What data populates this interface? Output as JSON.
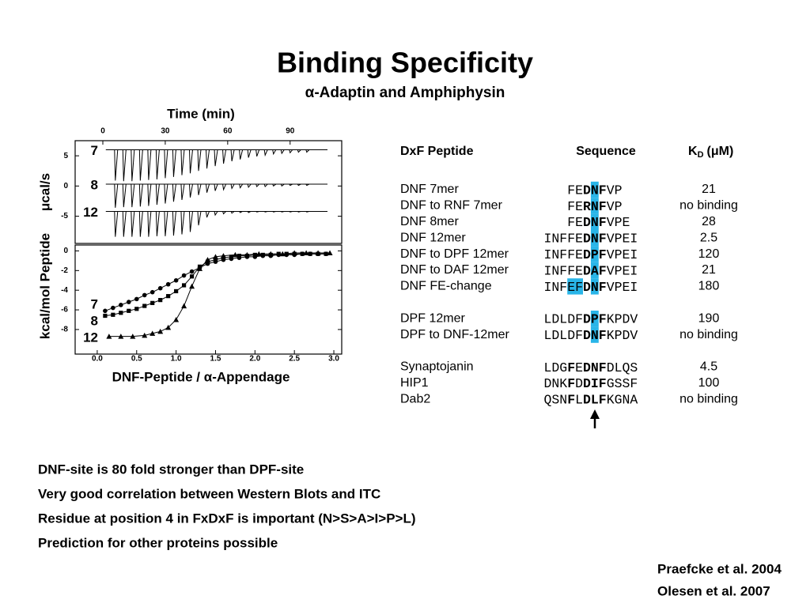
{
  "title": "Binding Specificity",
  "subtitle": "α-Adaptin and Amphiphysin",
  "chart_data": [
    {
      "type": "trace",
      "x_label": "Time (min)",
      "y_label": "μcal/s",
      "xlim": [
        -13.3,
        114.8
      ],
      "ylim": [
        -9.5,
        7.5
      ],
      "xticks": [
        0,
        30,
        60,
        90
      ],
      "yticks": [
        5,
        0,
        -5
      ],
      "x": [
        6,
        10,
        14,
        18,
        22,
        26,
        30,
        34,
        38,
        42,
        46,
        50,
        54,
        58,
        62,
        66,
        70,
        74,
        78,
        82,
        86,
        90,
        94,
        98
      ],
      "series": [
        {
          "name": "7",
          "color": "#000000",
          "baseline": 6.0,
          "values": [
            0.9,
            0.8,
            0.8,
            0.9,
            1.0,
            1.1,
            1.3,
            1.5,
            1.8,
            2.1,
            2.5,
            2.9,
            3.3,
            3.7,
            4.1,
            4.4,
            4.7,
            4.9,
            5.1,
            5.3,
            5.4,
            5.5,
            5.6,
            5.6
          ]
        },
        {
          "name": "8",
          "color": "#000000",
          "baseline": 0.3,
          "values": [
            -3.6,
            -3.5,
            -3.5,
            -3.4,
            -3.3,
            -3.1,
            -2.9,
            -2.6,
            -2.3,
            -1.9,
            -1.5,
            -1.1,
            -0.8,
            -0.6,
            -0.4,
            -0.3,
            -0.2,
            -0.1,
            -0.1,
            0.0,
            0.0,
            0.1,
            0.1,
            0.1
          ]
        },
        {
          "name": "12",
          "color": "#000000",
          "baseline": -4.2,
          "values": [
            -8.4,
            -8.4,
            -8.4,
            -8.4,
            -8.4,
            -8.3,
            -8.3,
            -8.2,
            -8.0,
            -7.6,
            -6.5,
            -5.2,
            -4.8,
            -4.6,
            -4.5,
            -4.4,
            -4.4,
            -4.3,
            -4.3,
            -4.3,
            -4.3,
            -4.3,
            -4.3,
            -4.3
          ]
        }
      ]
    },
    {
      "type": "scatter",
      "x_label": "DNF-Peptide / α-Appendage",
      "y_label": "kcal/mol Peptide",
      "xlim": [
        -0.28,
        3.1
      ],
      "ylim": [
        -10.5,
        0.6
      ],
      "xticks": [
        {
          "value": 0,
          "label": "0.0"
        },
        0.5,
        {
          "value": 1,
          "label": "1.0"
        },
        1.5,
        {
          "value": 2,
          "label": "2.0"
        },
        2.5,
        {
          "value": 3,
          "label": "3.0"
        }
      ],
      "yticks": [
        0,
        -2,
        -4,
        -6,
        -8
      ],
      "series": [
        {
          "name": "7",
          "color": "#000000",
          "marker": "circle",
          "fit_line": true,
          "x": [
            0.1,
            0.2,
            0.3,
            0.4,
            0.5,
            0.6,
            0.7,
            0.8,
            0.9,
            1.0,
            1.1,
            1.2,
            1.3,
            1.4,
            1.5,
            1.6,
            1.7,
            1.8,
            1.9,
            2.0,
            2.1,
            2.2,
            2.3,
            2.4,
            2.5,
            2.6,
            2.7,
            2.8,
            2.9
          ],
          "values": [
            -6.1,
            -5.8,
            -5.5,
            -5.2,
            -4.9,
            -4.5,
            -4.2,
            -3.8,
            -3.4,
            -3.0,
            -2.5,
            -2.1,
            -1.7,
            -1.3,
            -1.1,
            -0.9,
            -0.8,
            -0.7,
            -0.6,
            -0.6,
            -0.5,
            -0.5,
            -0.4,
            -0.4,
            -0.4,
            -0.3,
            -0.3,
            -0.3,
            -0.3
          ]
        },
        {
          "name": "8",
          "color": "#000000",
          "marker": "square",
          "fit_line": true,
          "x": [
            0.1,
            0.2,
            0.3,
            0.4,
            0.5,
            0.6,
            0.7,
            0.8,
            0.9,
            1.0,
            1.1,
            1.2,
            1.3,
            1.4,
            1.5,
            1.6,
            1.7,
            1.8,
            1.9,
            2.0,
            2.1,
            2.2,
            2.3,
            2.4,
            2.5,
            2.6,
            2.7,
            2.8,
            2.9
          ],
          "values": [
            -6.6,
            -6.5,
            -6.3,
            -6.1,
            -5.9,
            -5.6,
            -5.3,
            -5.0,
            -4.6,
            -4.1,
            -3.5,
            -2.6,
            -1.6,
            -1.1,
            -0.9,
            -0.7,
            -0.6,
            -0.5,
            -0.5,
            -0.4,
            -0.4,
            -0.4,
            -0.3,
            -0.3,
            -0.3,
            -0.3,
            -0.3,
            -0.3,
            -0.3
          ]
        },
        {
          "name": "12",
          "color": "#000000",
          "marker": "triangle",
          "fit_line": true,
          "x": [
            0.15,
            0.3,
            0.45,
            0.6,
            0.7,
            0.8,
            0.9,
            1.0,
            1.1,
            1.2,
            1.3,
            1.4,
            1.5,
            1.6,
            1.75,
            1.9,
            2.05,
            2.2,
            2.35,
            2.5,
            2.65,
            2.8,
            2.95
          ],
          "values": [
            -8.7,
            -8.7,
            -8.7,
            -8.6,
            -8.4,
            -8.2,
            -7.8,
            -7.0,
            -5.6,
            -3.6,
            -1.8,
            -0.9,
            -0.6,
            -0.5,
            -0.4,
            -0.4,
            -0.3,
            -0.3,
            -0.3,
            -0.2,
            -0.2,
            -0.2,
            -0.2
          ]
        }
      ]
    }
  ],
  "table": {
    "highlight_color": "#29b5e8",
    "header": {
      "peptide": "DxF Peptide",
      "sequence": "Sequence",
      "kd": {
        "main": "K",
        "sub": "D",
        "unit": "(μM)"
      }
    },
    "groups": [
      {
        "rows": [
          {
            "peptide": "DNF 7mer",
            "sequence": [
              {
                "text": "FE"
              },
              {
                "text": "D",
                "bold": true
              },
              {
                "text": "N",
                "bold": true,
                "highlight": true
              },
              {
                "text": "F",
                "bold": true
              },
              {
                "text": "VP"
              }
            ],
            "kd": 21
          },
          {
            "peptide": "DNF to RNF 7mer",
            "sequence": [
              {
                "text": "FE"
              },
              {
                "text": "R",
                "bold": true
              },
              {
                "text": "N",
                "bold": true,
                "highlight": true
              },
              {
                "text": "F",
                "bold": true
              },
              {
                "text": "VP"
              }
            ],
            "kd": "no binding"
          },
          {
            "peptide": "DNF 8mer",
            "sequence": [
              {
                "text": "FE"
              },
              {
                "text": "D",
                "bold": true
              },
              {
                "text": "N",
                "bold": true,
                "highlight": true
              },
              {
                "text": "F",
                "bold": true
              },
              {
                "text": "VPE"
              }
            ],
            "kd": 28
          },
          {
            "peptide": "DNF 12mer",
            "sequence": [
              {
                "text": "INFFE"
              },
              {
                "text": "D",
                "bold": true
              },
              {
                "text": "N",
                "bold": true,
                "highlight": true
              },
              {
                "text": "F",
                "bold": true
              },
              {
                "text": "VPEI"
              }
            ],
            "kd": 2.5
          },
          {
            "peptide": "DNF to DPF 12mer",
            "sequence": [
              {
                "text": "INFFE"
              },
              {
                "text": "D",
                "bold": true
              },
              {
                "text": "P",
                "bold": true,
                "highlight": true
              },
              {
                "text": "F",
                "bold": true
              },
              {
                "text": "VPEI"
              }
            ],
            "kd": 120
          },
          {
            "peptide": "DNF to DAF 12mer",
            "sequence": [
              {
                "text": "INFFE"
              },
              {
                "text": "D",
                "bold": true
              },
              {
                "text": "A",
                "bold": true,
                "highlight": true
              },
              {
                "text": "F",
                "bold": true
              },
              {
                "text": "VPEI"
              }
            ],
            "kd": 21
          },
          {
            "peptide": "DNF FE-change",
            "sequence": [
              {
                "text": "INF"
              },
              {
                "text": "EF",
                "highlight": true
              },
              {
                "text": "D",
                "bold": true
              },
              {
                "text": "N",
                "bold": true,
                "highlight": true
              },
              {
                "text": "F",
                "bold": true
              },
              {
                "text": "VPEI"
              }
            ],
            "kd": 180
          }
        ]
      },
      {
        "rows": [
          {
            "peptide": "DPF 12mer",
            "sequence": [
              {
                "text": "LDLDF"
              },
              {
                "text": "D",
                "bold": true
              },
              {
                "text": "P",
                "bold": true,
                "highlight": true
              },
              {
                "text": "F",
                "bold": true
              },
              {
                "text": "KPDV"
              }
            ],
            "kd": 190
          },
          {
            "peptide": "DPF to DNF-12mer",
            "sequence": [
              {
                "text": "LDLDF"
              },
              {
                "text": "D",
                "bold": true
              },
              {
                "text": "N",
                "bold": true,
                "highlight": true
              },
              {
                "text": "F",
                "bold": true
              },
              {
                "text": "KPDV"
              }
            ],
            "kd": "no binding"
          }
        ]
      },
      {
        "rows": [
          {
            "peptide": "Synaptojanin",
            "sequence": [
              {
                "text": "LDG"
              },
              {
                "text": "F",
                "bold": true
              },
              {
                "text": "E"
              },
              {
                "text": "DNF",
                "bold": true
              },
              {
                "text": "DLQS"
              }
            ],
            "kd": 4.5
          },
          {
            "peptide": "HIP1",
            "sequence": [
              {
                "text": "DNK"
              },
              {
                "text": "F",
                "bold": true
              },
              {
                "text": "D"
              },
              {
                "text": "DIF",
                "bold": true
              },
              {
                "text": "GSSF"
              }
            ],
            "kd": 100
          },
          {
            "peptide": "Dab2",
            "sequence": [
              {
                "text": "QSN"
              },
              {
                "text": "F",
                "bold": true
              },
              {
                "text": "L"
              },
              {
                "text": "DLF",
                "bold": true
              },
              {
                "text": "KGNA"
              }
            ],
            "kd": "no binding"
          }
        ]
      }
    ]
  },
  "bullets": [
    "DNF-site is 80 fold stronger than DPF-site",
    "Very good correlation between Western Blots and ITC",
    "Residue at position 4 in FxDxF is important (N>S>A>I>P>L)",
    "Prediction for other proteins possible"
  ],
  "references": [
    "Praefcke et al. 2004",
    "Olesen et al. 2007"
  ]
}
